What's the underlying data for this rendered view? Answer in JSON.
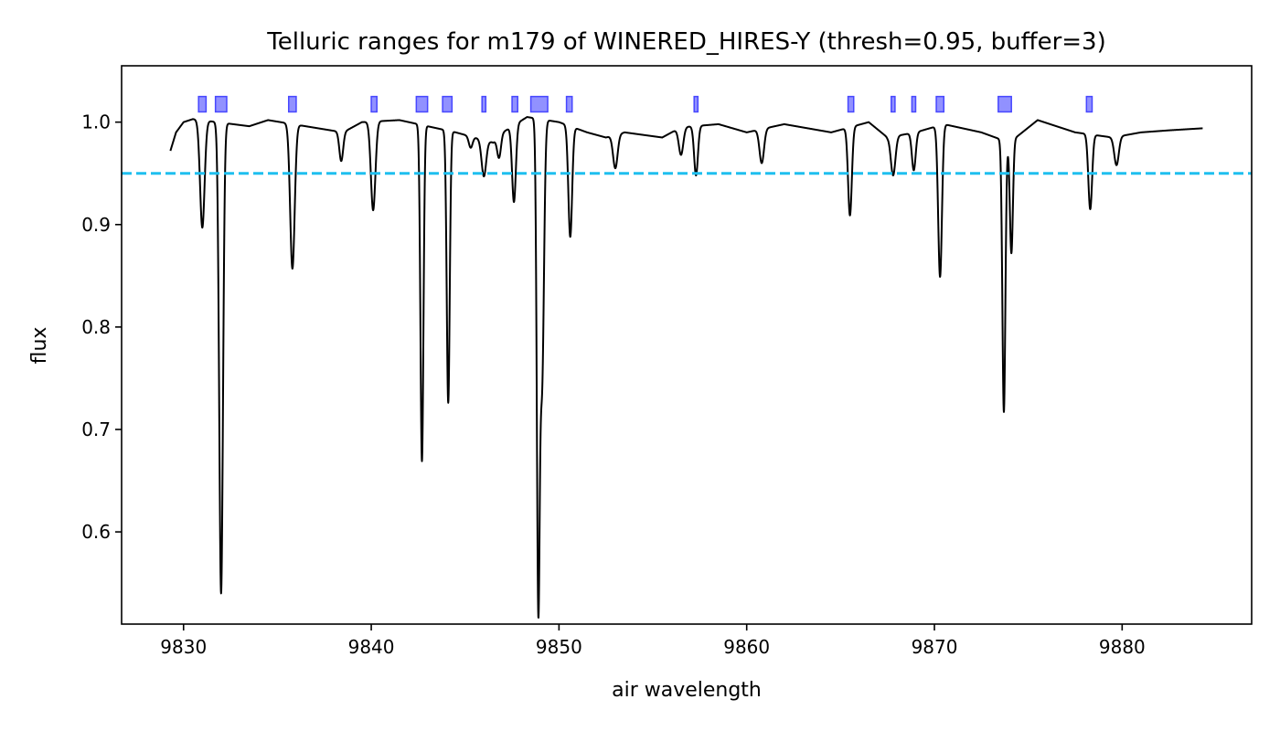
{
  "chart_data": {
    "type": "line",
    "title": "Telluric ranges for m179 of WINERED_HIRES-Y (thresh=0.95, buffer=3)",
    "xlabel": "air wavelength",
    "ylabel": "flux",
    "xlim": [
      9826.7,
      9886.9
    ],
    "ylim": [
      0.51,
      1.055
    ],
    "xticks": [
      9830,
      9840,
      9850,
      9860,
      9870,
      9880
    ],
    "yticks": [
      0.6,
      0.7,
      0.8,
      0.9,
      1.0
    ],
    "xtick_labels": [
      "9830",
      "9840",
      "9850",
      "9860",
      "9870",
      "9880"
    ],
    "ytick_labels": [
      "0.6",
      "0.7",
      "0.8",
      "0.9",
      "1.0"
    ],
    "grid": false,
    "threshold": {
      "value": 0.95,
      "color": "#1ebfef",
      "style": "dashed"
    },
    "spectrum": {
      "color": "#000000",
      "x_start": 9829.3,
      "x_end": 9884.3,
      "continuum": [
        [
          9829.3,
          0.972
        ],
        [
          9829.6,
          0.99
        ],
        [
          9830.0,
          1.0
        ],
        [
          9830.5,
          1.003
        ],
        [
          9833.5,
          0.996
        ],
        [
          9834.5,
          1.002
        ],
        [
          9836.5,
          0.996
        ],
        [
          9838.5,
          0.99
        ],
        [
          9839.5,
          1.0
        ],
        [
          9841.5,
          1.002
        ],
        [
          9844.5,
          0.99
        ],
        [
          9846.5,
          0.98
        ],
        [
          9847.0,
          0.99
        ],
        [
          9848.3,
          1.005
        ],
        [
          9850.0,
          1.0
        ],
        [
          9851.5,
          0.99
        ],
        [
          9852.5,
          0.985
        ],
        [
          9853.5,
          0.99
        ],
        [
          9855.5,
          0.985
        ],
        [
          9856.5,
          0.995
        ],
        [
          9858.5,
          0.998
        ],
        [
          9860.0,
          0.99
        ],
        [
          9862.0,
          0.998
        ],
        [
          9864.5,
          0.99
        ],
        [
          9866.5,
          1.0
        ],
        [
          9867.5,
          0.985
        ],
        [
          9869.0,
          0.99
        ],
        [
          9870.5,
          0.998
        ],
        [
          9872.5,
          0.99
        ],
        [
          9874.0,
          0.98
        ],
        [
          9875.5,
          1.002
        ],
        [
          9877.5,
          0.99
        ],
        [
          9879.5,
          0.985
        ],
        [
          9881.0,
          0.99
        ],
        [
          9882.5,
          0.992
        ],
        [
          9884.3,
          0.994
        ]
      ],
      "lines": [
        {
          "center": 9831.0,
          "min_flux": 0.897,
          "width": 0.12
        },
        {
          "center": 9832.0,
          "min_flux": 0.54,
          "width": 0.1
        },
        {
          "center": 9835.8,
          "min_flux": 0.857,
          "width": 0.12
        },
        {
          "center": 9838.4,
          "min_flux": 0.962,
          "width": 0.1
        },
        {
          "center": 9840.1,
          "min_flux": 0.914,
          "width": 0.12
        },
        {
          "center": 9842.7,
          "min_flux": 0.669,
          "width": 0.08
        },
        {
          "center": 9844.1,
          "min_flux": 0.726,
          "width": 0.08
        },
        {
          "center": 9845.3,
          "min_flux": 0.975,
          "width": 0.1
        },
        {
          "center": 9846.0,
          "min_flux": 0.947,
          "width": 0.12
        },
        {
          "center": 9846.8,
          "min_flux": 0.965,
          "width": 0.1
        },
        {
          "center": 9847.6,
          "min_flux": 0.922,
          "width": 0.1
        },
        {
          "center": 9848.9,
          "min_flux": 0.535,
          "width": 0.08
        },
        {
          "center": 9849.1,
          "min_flux": 0.75,
          "width": 0.1
        },
        {
          "center": 9850.6,
          "min_flux": 0.888,
          "width": 0.1
        },
        {
          "center": 9853.0,
          "min_flux": 0.955,
          "width": 0.12
        },
        {
          "center": 9856.5,
          "min_flux": 0.968,
          "width": 0.12
        },
        {
          "center": 9857.3,
          "min_flux": 0.948,
          "width": 0.1
        },
        {
          "center": 9860.8,
          "min_flux": 0.96,
          "width": 0.12
        },
        {
          "center": 9865.5,
          "min_flux": 0.909,
          "width": 0.1
        },
        {
          "center": 9867.8,
          "min_flux": 0.948,
          "width": 0.12
        },
        {
          "center": 9868.9,
          "min_flux": 0.953,
          "width": 0.1
        },
        {
          "center": 9870.3,
          "min_flux": 0.849,
          "width": 0.1
        },
        {
          "center": 9873.7,
          "min_flux": 0.717,
          "width": 0.08
        },
        {
          "center": 9874.1,
          "min_flux": 0.872,
          "width": 0.08
        },
        {
          "center": 9878.3,
          "min_flux": 0.915,
          "width": 0.1
        },
        {
          "center": 9879.7,
          "min_flux": 0.958,
          "width": 0.12
        }
      ]
    },
    "telluric_ranges": {
      "color": "#4747ff",
      "y_range": [
        1.01,
        1.025
      ],
      "ranges": [
        [
          9830.8,
          9831.2
        ],
        [
          9831.7,
          9832.3
        ],
        [
          9835.6,
          9836.0
        ],
        [
          9840.0,
          9840.3
        ],
        [
          9842.4,
          9843.0
        ],
        [
          9843.8,
          9844.3
        ],
        [
          9845.9,
          9846.1
        ],
        [
          9847.5,
          9847.8
        ],
        [
          9848.5,
          9849.4
        ],
        [
          9850.4,
          9850.7
        ],
        [
          9857.2,
          9857.4
        ],
        [
          9865.4,
          9865.7
        ],
        [
          9867.7,
          9867.9
        ],
        [
          9868.8,
          9869.0
        ],
        [
          9870.1,
          9870.5
        ],
        [
          9873.4,
          9874.1
        ],
        [
          9878.1,
          9878.4
        ]
      ]
    }
  }
}
